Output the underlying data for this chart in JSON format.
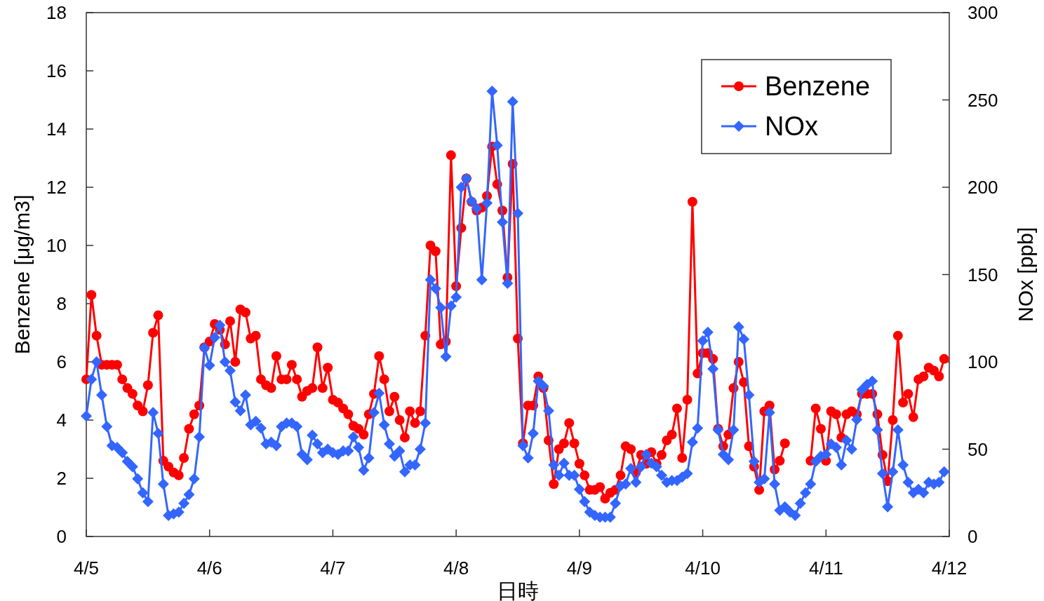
{
  "chart_data": {
    "type": "line",
    "xlabel": "日時",
    "ylabel": "Benzene  [μg/m3]",
    "y2label": "NOx  [ppb]",
    "categories": [
      "4/5",
      null,
      null,
      null,
      null,
      null,
      null,
      null,
      null,
      null,
      null,
      null,
      null,
      null,
      null,
      null,
      null,
      null,
      null,
      null,
      null,
      null,
      null,
      null,
      "4/6",
      null,
      null,
      null,
      null,
      null,
      null,
      null,
      null,
      null,
      null,
      null,
      null,
      null,
      null,
      null,
      null,
      null,
      null,
      null,
      null,
      null,
      null,
      null,
      "4/7",
      null,
      null,
      null,
      null,
      null,
      null,
      null,
      null,
      null,
      null,
      null,
      null,
      null,
      null,
      null,
      null,
      null,
      null,
      null,
      null,
      null,
      null,
      null,
      "4/8",
      null,
      null,
      null,
      null,
      null,
      null,
      null,
      null,
      null,
      null,
      null,
      null,
      null,
      null,
      null,
      null,
      null,
      null,
      null,
      null,
      null,
      null,
      null,
      "4/9",
      null,
      null,
      null,
      null,
      null,
      null,
      null,
      null,
      null,
      null,
      null,
      null,
      null,
      null,
      null,
      null,
      null,
      null,
      null,
      null,
      null,
      null,
      null,
      "4/10",
      null,
      null,
      null,
      null,
      null,
      null,
      null,
      null,
      null,
      null,
      null,
      null,
      null,
      null,
      null,
      null,
      null,
      null,
      null,
      null,
      null,
      null,
      null,
      "4/11",
      null,
      null,
      null,
      null,
      null,
      null,
      null,
      null,
      null,
      null,
      null,
      null,
      null,
      null,
      null,
      null,
      null,
      null,
      null,
      null,
      null,
      null,
      null,
      "4/12"
    ],
    "ylim": [
      0,
      18
    ],
    "yticks": [
      0,
      2,
      4,
      6,
      8,
      10,
      12,
      14,
      16,
      18
    ],
    "y2lim": [
      0,
      300
    ],
    "y2ticks": [
      0,
      50,
      100,
      150,
      200,
      250,
      300
    ],
    "legend": "top right",
    "line_style": "solid",
    "series": [
      {
        "name": "Benzene",
        "color": "#ff0000",
        "marker": "circle",
        "values": [
          5.4,
          8.3,
          6.9,
          5.9,
          5.9,
          5.9,
          5.9,
          5.4,
          5.1,
          4.9,
          4.5,
          4.3,
          5.2,
          7.0,
          7.6,
          2.6,
          2.4,
          2.2,
          2.1,
          2.7,
          3.7,
          4.2,
          4.5,
          6.5,
          6.7,
          7.3,
          7.1,
          6.6,
          7.4,
          6.0,
          7.8,
          7.7,
          6.8,
          6.9,
          5.4,
          5.2,
          5.1,
          6.2,
          5.4,
          5.4,
          5.9,
          5.4,
          4.8,
          5.0,
          5.1,
          6.5,
          5.1,
          5.8,
          4.7,
          4.6,
          4.4,
          4.2,
          3.8,
          3.7,
          3.5,
          4.2,
          4.9,
          6.2,
          5.4,
          4.3,
          4.8,
          4.0,
          3.4,
          4.3,
          3.9,
          4.3,
          6.9,
          10.0,
          9.8,
          6.6,
          6.7,
          13.1,
          8.6,
          10.6,
          12.3,
          11.5,
          11.2,
          11.3,
          11.7,
          13.4,
          12.1,
          11.2,
          8.9,
          12.8,
          6.8,
          3.2,
          4.5,
          4.5,
          5.5,
          5.1,
          3.3,
          1.8,
          3.0,
          3.2,
          3.9,
          3.2,
          2.5,
          2.1,
          1.6,
          1.6,
          1.7,
          1.3,
          1.5,
          1.6,
          2.1,
          3.1,
          3.0,
          2.2,
          2.8,
          2.5,
          2.9,
          2.5,
          2.8,
          3.3,
          3.5,
          4.4,
          2.7,
          4.7,
          11.5,
          5.6,
          6.3,
          6.3,
          6.1,
          3.7,
          3.1,
          3.5,
          5.1,
          6.0,
          5.3,
          3.1,
          2.4,
          1.6,
          4.3,
          4.5,
          2.3,
          2.6,
          3.2,
          null,
          null,
          null,
          null,
          2.6,
          4.4,
          3.7,
          2.6,
          4.3,
          4.2,
          3.4,
          4.2,
          4.3,
          4.2,
          4.9,
          4.9,
          4.9,
          4.2,
          2.8,
          1.9,
          4.0,
          6.9,
          4.6,
          4.9,
          4.1,
          5.4,
          5.5,
          5.8,
          5.7,
          5.5,
          6.1,
          null
        ]
      },
      {
        "name": "NOx",
        "color": "#3366ff",
        "marker": "diamond",
        "axis": "y2",
        "values": [
          69,
          90,
          100,
          81,
          63,
          52,
          51,
          48,
          43,
          40,
          33,
          25,
          20,
          71,
          59,
          30,
          12,
          13,
          14,
          19,
          24,
          33,
          57,
          108,
          98,
          114,
          121,
          100,
          95,
          77,
          72,
          81,
          64,
          66,
          62,
          53,
          54,
          52,
          63,
          65,
          65,
          63,
          47,
          44,
          58,
          53,
          48,
          50,
          48,
          47,
          49,
          49,
          57,
          51,
          38,
          45,
          71,
          82,
          64,
          53,
          46,
          49,
          37,
          41,
          41,
          50,
          65,
          147,
          142,
          131,
          103,
          132,
          137,
          200,
          205,
          192,
          188,
          147,
          191,
          255,
          224,
          180,
          145,
          249,
          185,
          52,
          45,
          59,
          89,
          86,
          72,
          41,
          35,
          42,
          35,
          35,
          27,
          20,
          14,
          12,
          11,
          11,
          11,
          19,
          29,
          30,
          39,
          31,
          40,
          47,
          42,
          40,
          35,
          31,
          32,
          32,
          34,
          36,
          54,
          62,
          112,
          117,
          96,
          61,
          47,
          44,
          61,
          120,
          113,
          81,
          43,
          31,
          33,
          71,
          30,
          15,
          17,
          14,
          12,
          19,
          25,
          30,
          43,
          46,
          47,
          53,
          51,
          41,
          55,
          50,
          67,
          84,
          87,
          89,
          61,
          36,
          17,
          37,
          61,
          41,
          31,
          25,
          27,
          25,
          31,
          30,
          31,
          37,
          null
        ]
      }
    ]
  }
}
